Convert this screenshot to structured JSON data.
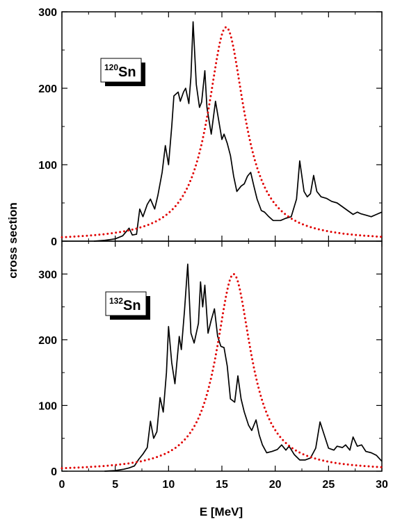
{
  "chart_data": {
    "type": "line",
    "xlabel": "E [MeV]",
    "ylabel": "cross section",
    "xlim": [
      0,
      30
    ],
    "x_ticks": [
      "0",
      "5",
      "10",
      "15",
      "20",
      "25",
      "30"
    ],
    "grid": false,
    "colors": {
      "response": "#000000",
      "lorentzian": "#e00000"
    },
    "panels": [
      {
        "id": "top",
        "label": {
          "mass": "120",
          "element": "Sn"
        },
        "ylim": [
          0,
          300
        ],
        "y_ticks": [
          {
            "value": 0,
            "label": "0"
          },
          {
            "value": 100,
            "label": "100"
          },
          {
            "value": 200,
            "label": "200"
          },
          {
            "value": 300,
            "label": "300"
          }
        ],
        "series": [
          {
            "style": "solid",
            "color": "#000000",
            "points": [
              [
                3.0,
                0
              ],
              [
                4.0,
                1
              ],
              [
                5.0,
                3
              ],
              [
                5.7,
                7
              ],
              [
                6.0,
                12
              ],
              [
                6.3,
                17
              ],
              [
                6.6,
                8
              ],
              [
                7.0,
                9
              ],
              [
                7.3,
                42
              ],
              [
                7.6,
                32
              ],
              [
                8.0,
                48
              ],
              [
                8.3,
                55
              ],
              [
                8.7,
                42
              ],
              [
                9.0,
                60
              ],
              [
                9.4,
                90
              ],
              [
                9.7,
                125
              ],
              [
                10.0,
                100
              ],
              [
                10.3,
                150
              ],
              [
                10.5,
                190
              ],
              [
                10.9,
                195
              ],
              [
                11.1,
                183
              ],
              [
                11.4,
                195
              ],
              [
                11.6,
                200
              ],
              [
                11.9,
                180
              ],
              [
                12.1,
                215
              ],
              [
                12.3,
                287
              ],
              [
                12.6,
                205
              ],
              [
                12.9,
                175
              ],
              [
                13.1,
                182
              ],
              [
                13.4,
                223
              ],
              [
                13.6,
                175
              ],
              [
                14.0,
                140
              ],
              [
                14.4,
                183
              ],
              [
                14.8,
                150
              ],
              [
                15.0,
                133
              ],
              [
                15.2,
                140
              ],
              [
                15.5,
                128
              ],
              [
                15.8,
                112
              ],
              [
                16.1,
                85
              ],
              [
                16.4,
                65
              ],
              [
                16.8,
                72
              ],
              [
                17.1,
                75
              ],
              [
                17.4,
                85
              ],
              [
                17.7,
                90
              ],
              [
                18.0,
                72
              ],
              [
                18.3,
                55
              ],
              [
                18.7,
                40
              ],
              [
                19.0,
                38
              ],
              [
                19.4,
                32
              ],
              [
                19.8,
                27
              ],
              [
                20.5,
                27
              ],
              [
                21.0,
                30
              ],
              [
                21.5,
                32
              ],
              [
                22.0,
                55
              ],
              [
                22.3,
                105
              ],
              [
                22.7,
                65
              ],
              [
                23.0,
                58
              ],
              [
                23.3,
                62
              ],
              [
                23.6,
                86
              ],
              [
                23.9,
                65
              ],
              [
                24.3,
                58
              ],
              [
                24.8,
                56
              ],
              [
                25.3,
                52
              ],
              [
                25.8,
                50
              ],
              [
                26.3,
                45
              ],
              [
                26.8,
                40
              ],
              [
                27.3,
                35
              ],
              [
                27.7,
                38
              ],
              [
                28.0,
                36
              ],
              [
                28.5,
                34
              ],
              [
                29.0,
                32
              ],
              [
                29.5,
                35
              ],
              [
                30.0,
                38
              ]
            ]
          },
          {
            "style": "dotted",
            "color": "#e00000",
            "lorentzian": {
              "peak_x": 15.4,
              "peak_y": 280,
              "fwhm": 4.2
            }
          }
        ]
      },
      {
        "id": "bottom",
        "label": {
          "mass": "132",
          "element": "Sn"
        },
        "ylim": [
          0,
          350
        ],
        "y_ticks": [
          {
            "value": 0,
            "label": "0"
          },
          {
            "value": 100,
            "label": "100"
          },
          {
            "value": 200,
            "label": "200"
          },
          {
            "value": 300,
            "label": "300"
          }
        ],
        "series": [
          {
            "style": "solid",
            "color": "#000000",
            "points": [
              [
                4.0,
                0
              ],
              [
                5.0,
                1
              ],
              [
                5.8,
                3
              ],
              [
                6.3,
                5
              ],
              [
                6.8,
                8
              ],
              [
                7.2,
                18
              ],
              [
                7.6,
                26
              ],
              [
                8.0,
                36
              ],
              [
                8.3,
                76
              ],
              [
                8.6,
                50
              ],
              [
                8.9,
                60
              ],
              [
                9.2,
                112
              ],
              [
                9.5,
                90
              ],
              [
                9.8,
                150
              ],
              [
                10.0,
                220
              ],
              [
                10.3,
                165
              ],
              [
                10.6,
                133
              ],
              [
                11.0,
                205
              ],
              [
                11.2,
                185
              ],
              [
                11.5,
                245
              ],
              [
                11.8,
                315
              ],
              [
                12.1,
                210
              ],
              [
                12.4,
                195
              ],
              [
                12.8,
                225
              ],
              [
                13.0,
                288
              ],
              [
                13.2,
                250
              ],
              [
                13.4,
                283
              ],
              [
                13.7,
                210
              ],
              [
                14.0,
                230
              ],
              [
                14.3,
                247
              ],
              [
                14.6,
                205
              ],
              [
                14.9,
                190
              ],
              [
                15.2,
                188
              ],
              [
                15.5,
                160
              ],
              [
                15.8,
                110
              ],
              [
                16.2,
                105
              ],
              [
                16.5,
                145
              ],
              [
                16.8,
                110
              ],
              [
                17.1,
                90
              ],
              [
                17.5,
                70
              ],
              [
                17.8,
                62
              ],
              [
                18.2,
                78
              ],
              [
                18.5,
                55
              ],
              [
                18.8,
                40
              ],
              [
                19.2,
                28
              ],
              [
                19.7,
                30
              ],
              [
                20.2,
                33
              ],
              [
                20.6,
                40
              ],
              [
                21.0,
                32
              ],
              [
                21.3,
                38
              ],
              [
                21.8,
                25
              ],
              [
                22.3,
                17
              ],
              [
                22.8,
                17
              ],
              [
                23.3,
                20
              ],
              [
                23.8,
                35
              ],
              [
                24.2,
                75
              ],
              [
                24.6,
                55
              ],
              [
                25.0,
                35
              ],
              [
                25.5,
                32
              ],
              [
                25.8,
                38
              ],
              [
                26.3,
                36
              ],
              [
                26.6,
                40
              ],
              [
                27.0,
                32
              ],
              [
                27.3,
                52
              ],
              [
                27.7,
                38
              ],
              [
                28.1,
                40
              ],
              [
                28.5,
                30
              ],
              [
                29.0,
                28
              ],
              [
                29.5,
                24
              ],
              [
                30.0,
                15
              ]
            ]
          },
          {
            "style": "dotted",
            "color": "#e00000",
            "lorentzian": {
              "peak_x": 16.1,
              "peak_y": 300,
              "fwhm": 4.0
            }
          }
        ]
      }
    ]
  }
}
